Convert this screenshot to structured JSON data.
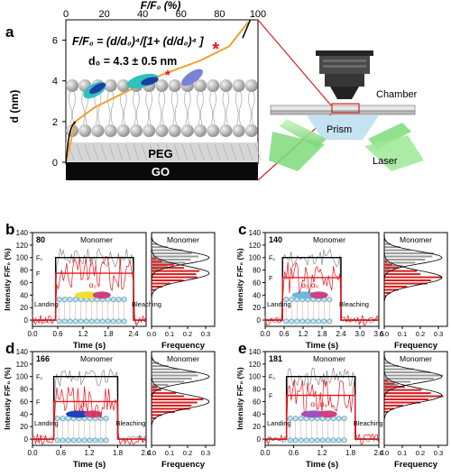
{
  "panel_a": {
    "label": "a",
    "top_axis_label": "F/F₀ (%)",
    "top_ticks": [
      "0",
      "20",
      "40",
      "60",
      "80",
      "100"
    ],
    "left_axis_label": "d (nm)",
    "left_ticks": [
      "0",
      "2",
      "4",
      "6"
    ],
    "equation": "F/F₀ = (d/d₀)⁴/[1+ (d/d₀)⁴ ]",
    "d0": "d₀ = 4.3 ± 0.5 nm",
    "peg": "PEG",
    "go": "GO",
    "chamber": "Chamber",
    "prism": "Prism",
    "laser": "Laser"
  },
  "panels": [
    {
      "label": "b",
      "residue": "80",
      "title": "Monomer",
      "hist_title": "Monomer",
      "x_ticks": [
        "0.0",
        "0.6",
        "1.2",
        "1.8",
        "2.4"
      ],
      "x_label": "Time (s)",
      "helices": "α₃",
      "landing": "Landing",
      "bleaching": "Bleaching"
    },
    {
      "label": "c",
      "residue": "140",
      "title": "Monomer",
      "hist_title": "Monomer",
      "x_ticks": [
        "0.0",
        "0.6",
        "1.2",
        "1.8",
        "2.4",
        "3.0",
        "3.6"
      ],
      "x_label": "Time (s)",
      "helices": "α₅ α₆",
      "landing": "Landing",
      "bleaching": "Bleaching"
    },
    {
      "label": "d",
      "residue": "166",
      "title": "Monomer",
      "hist_title": "Monomer",
      "x_ticks": [
        "0.0",
        "0.6",
        "1.2",
        "1.8",
        "2.4"
      ],
      "x_label": "Time (s)",
      "helices": "α₇",
      "landing": "Landing",
      "bleaching": "Bleaching"
    },
    {
      "label": "e",
      "residue": "181",
      "title": "Monomer",
      "hist_title": "Monomer",
      "x_ticks": [
        "0.0",
        "0.6",
        "1.2",
        "1.8",
        "2.4"
      ],
      "x_label": "Time (s)",
      "helices": "α₇ α₈",
      "landing": "Landing",
      "bleaching": "Bleaching"
    }
  ],
  "common": {
    "y_label": "Intensity F/F₀ (%)",
    "y_ticks": [
      "0",
      "20",
      "40",
      "60",
      "80",
      "100",
      "120",
      "140"
    ],
    "hist_x_ticks": [
      "0.0",
      "0.1",
      "0.2",
      "0.3"
    ],
    "hist_x_label": "Frequency",
    "f0_mark": "F₀",
    "f_mark": "F"
  },
  "colors": {
    "black_trace": "#000000",
    "red_trace": "#e8141b",
    "gray_bar": "#9a9a9a",
    "red_bar": "#d91e1e",
    "curve": "#f0a030"
  },
  "chart_data": [
    {
      "type": "line",
      "panel": "a",
      "title": "",
      "xlabel": "F/F₀ (%)",
      "ylabel": "d (nm)",
      "xlim": [
        0,
        100
      ],
      "ylim": [
        0,
        7
      ],
      "series": [
        {
          "x": [
            0,
            5,
            15,
            30,
            50,
            70,
            85,
            95
          ],
          "y": [
            0.0,
            2.0,
            2.7,
            3.4,
            4.3,
            5.0,
            5.7,
            6.9
          ]
        }
      ],
      "points": [
        {
          "x": 53,
          "y": 4.3
        },
        {
          "x": 78,
          "y": 5.5
        }
      ]
    },
    {
      "type": "line",
      "panel": "b",
      "xlim": [
        0,
        2.7
      ],
      "ylim": [
        -10,
        140
      ],
      "F0": 100,
      "F": 75,
      "landing": 0.55,
      "bleaching": 2.4
    },
    {
      "type": "line",
      "panel": "c",
      "xlim": [
        0,
        3.6
      ],
      "ylim": [
        -10,
        140
      ],
      "F0": 100,
      "F": 68,
      "landing": 0.55,
      "bleaching": 2.4
    },
    {
      "type": "line",
      "panel": "d",
      "xlim": [
        0,
        2.4
      ],
      "ylim": [
        -10,
        140
      ],
      "F0": 100,
      "F": 60,
      "landing": 0.45,
      "bleaching": 1.8
    },
    {
      "type": "line",
      "panel": "e",
      "xlim": [
        0,
        2.4
      ],
      "ylim": [
        -10,
        140
      ],
      "F0": 100,
      "F": 70,
      "landing": 0.45,
      "bleaching": 1.9
    }
  ]
}
